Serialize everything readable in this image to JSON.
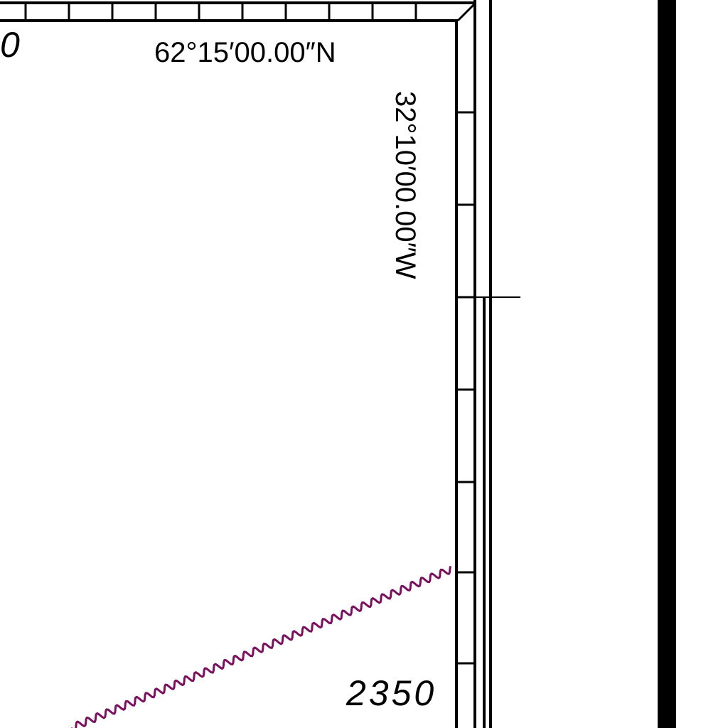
{
  "map": {
    "latitude_label": "62°15′00.00″N",
    "longitude_label": "32°10′00.00″W",
    "partial_depth_label": "0",
    "depth_label": "2350"
  },
  "colors": {
    "frame": "#000000",
    "background": "#ffffff",
    "submarine_cable": "#7a1060"
  },
  "icons": {
    "submarine_cable": "zigzag-line"
  }
}
